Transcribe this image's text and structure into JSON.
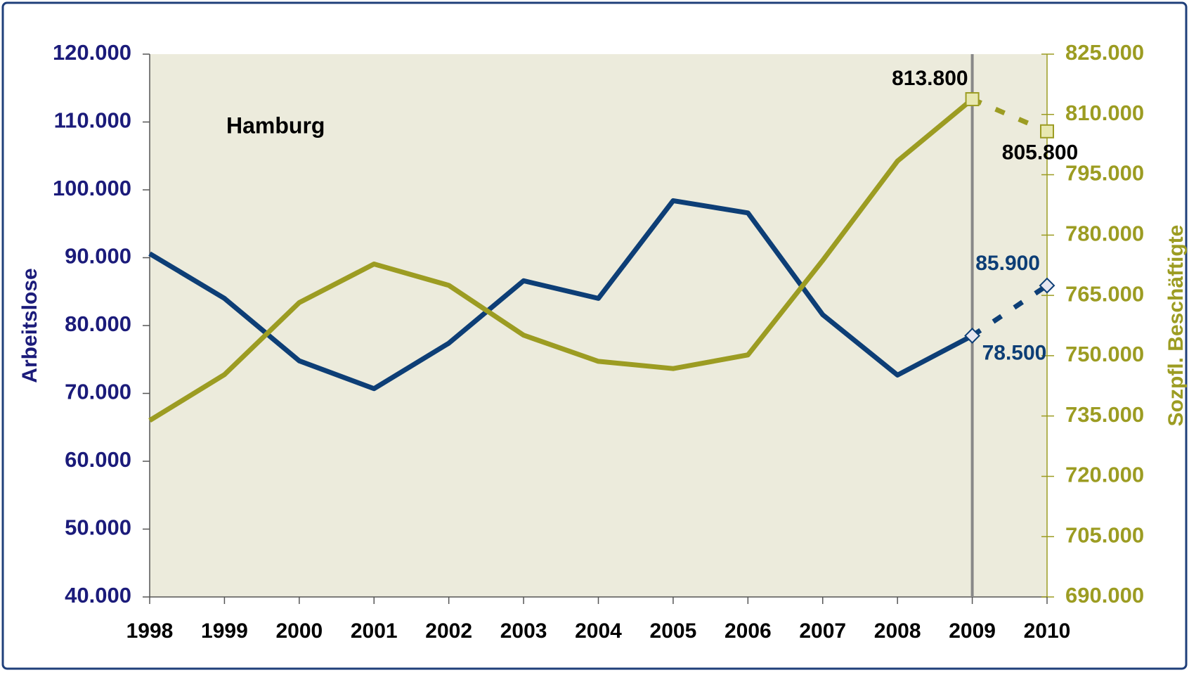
{
  "chart_data": {
    "type": "line",
    "annotation": "Hamburg",
    "ylabel": "Arbeitslose",
    "y2label": "Sozpfl. Beschäftigte",
    "categories": [
      "1998",
      "1999",
      "2000",
      "2001",
      "2002",
      "2003",
      "2004",
      "2005",
      "2006",
      "2007",
      "2008",
      "2009",
      "2010"
    ],
    "forecast_from": "2009",
    "series": [
      {
        "color": "#0d3e76",
        "axis": "y",
        "marker": "diamond",
        "values": [
          90600,
          84000,
          74800,
          70700,
          77400,
          86600,
          84000,
          98400,
          96600,
          81600,
          72700,
          78500,
          85900
        ],
        "value_labels": [
          null,
          null,
          null,
          null,
          null,
          null,
          null,
          null,
          null,
          null,
          null,
          "78.500",
          "85.900"
        ]
      },
      {
        "color": "#9c9c22",
        "axis": "y2",
        "marker": "square",
        "values": [
          733900,
          745300,
          763200,
          772800,
          767500,
          755100,
          748600,
          746800,
          750200,
          773700,
          798400,
          813800,
          805800
        ],
        "value_labels": [
          null,
          null,
          null,
          null,
          null,
          null,
          null,
          null,
          null,
          null,
          null,
          "813.800",
          "805.800"
        ]
      }
    ],
    "ylim": [
      40000,
      120000
    ],
    "yticks": [
      {
        "value": 40000,
        "label": "40.000"
      },
      {
        "value": 50000,
        "label": "50.000"
      },
      {
        "value": 60000,
        "label": "60.000"
      },
      {
        "value": 70000,
        "label": "70.000"
      },
      {
        "value": 80000,
        "label": "80.000"
      },
      {
        "value": 90000,
        "label": "90.000"
      },
      {
        "value": 100000,
        "label": "100.000"
      },
      {
        "value": 110000,
        "label": "110.000"
      },
      {
        "value": 120000,
        "label": "120.000"
      }
    ],
    "y2lim": [
      690000,
      825000
    ],
    "y2ticks": [
      {
        "value": 690000,
        "label": "690.000"
      },
      {
        "value": 705000,
        "label": "705.000"
      },
      {
        "value": 720000,
        "label": "720.000"
      },
      {
        "value": 735000,
        "label": "735.000"
      },
      {
        "value": 750000,
        "label": "750.000"
      },
      {
        "value": 765000,
        "label": "765.000"
      },
      {
        "value": 780000,
        "label": "780.000"
      },
      {
        "value": 795000,
        "label": "795.000"
      },
      {
        "value": 810000,
        "label": "810.000"
      },
      {
        "value": 825000,
        "label": "825.000"
      }
    ],
    "grid": false
  }
}
